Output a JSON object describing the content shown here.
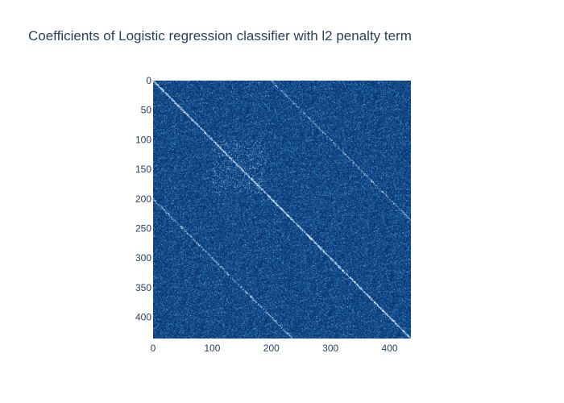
{
  "chart_data": {
    "type": "heatmap",
    "title": "Coefficients of Logistic regression classifier with l2 penalty term",
    "xlabel": "",
    "ylabel": "",
    "x_range": [
      0,
      436
    ],
    "y_range": [
      436,
      0
    ],
    "x_ticks": [
      0,
      100,
      200,
      300,
      400
    ],
    "y_ticks": [
      0,
      50,
      100,
      150,
      200,
      250,
      300,
      350,
      400
    ],
    "x_tick_labels": [
      "0",
      "100",
      "200",
      "300",
      "400"
    ],
    "y_tick_labels": [
      "0",
      "50",
      "100",
      "150",
      "200",
      "250",
      "300",
      "350",
      "400"
    ],
    "matrix_size": 436,
    "colorscale": [
      "#08306b",
      "#2171b5",
      "#6baed6",
      "#c6dbef",
      "#ffffff"
    ],
    "diagonal_bands": [
      {
        "offset": 0,
        "strength": 0.95
      },
      {
        "offset": 200,
        "strength": 0.45
      },
      {
        "offset": -200,
        "strength": 0.45
      }
    ],
    "highlight_block": {
      "from": 100,
      "to": 190,
      "strength": 0.25
    }
  }
}
